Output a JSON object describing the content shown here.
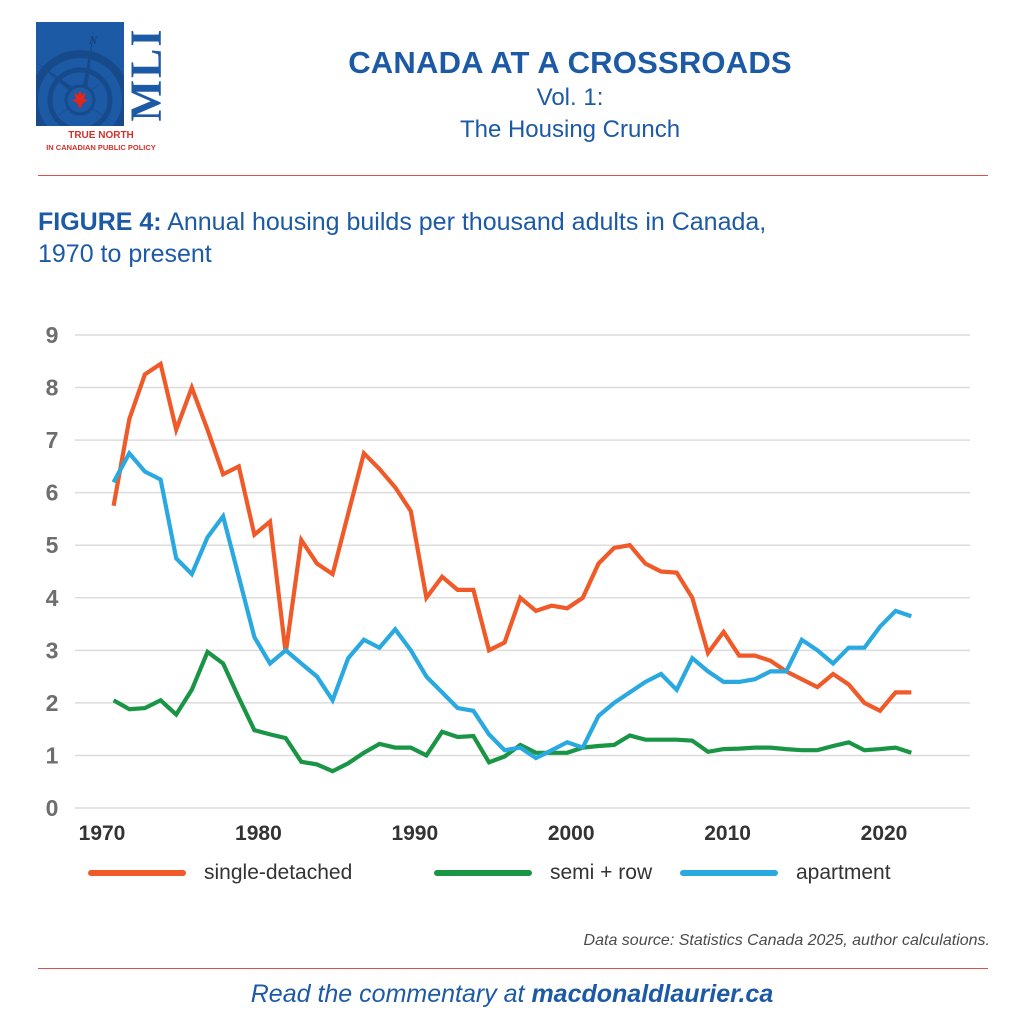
{
  "brand": {
    "logo_letters": "MLI",
    "logo_compass_letter": "N",
    "tagline_line1": "TRUE NORTH",
    "tagline_line2": "IN CANADIAN PUBLIC POLICY",
    "primary_color": "#1d5aa6",
    "accent_color": "#d0312d"
  },
  "header": {
    "title": "CANADA AT A CROSSROADS",
    "volume": "Vol. 1:",
    "subtitle": "The Housing Crunch"
  },
  "figure": {
    "label": "FIGURE 4:",
    "title_line1": " Annual housing builds per thousand adults in Canada,",
    "title_line2": "1970 to present"
  },
  "chart_data": {
    "type": "line",
    "title": "Annual housing builds per thousand adults in Canada, 1970 to present",
    "xlabel": "",
    "ylabel": "",
    "xlim": [
      1970,
      2023
    ],
    "ylim": [
      0,
      9
    ],
    "x_ticks": [
      1970,
      1980,
      1990,
      2000,
      2010,
      2020
    ],
    "x_tick_labels": [
      "1970",
      "1980",
      "1990",
      "2000",
      "2010",
      "2020"
    ],
    "y_ticks": [
      0,
      1,
      2,
      3,
      4,
      5,
      6,
      7,
      8,
      9
    ],
    "y_tick_labels": [
      "0",
      "1",
      "2",
      "3",
      "4",
      "5",
      "6",
      "7",
      "8",
      "9"
    ],
    "grid": "horizontal",
    "legend_position": "bottom",
    "x": [
      1971,
      1972,
      1973,
      1974,
      1975,
      1976,
      1977,
      1978,
      1979,
      1980,
      1981,
      1982,
      1983,
      1984,
      1985,
      1986,
      1987,
      1988,
      1989,
      1990,
      1991,
      1992,
      1993,
      1994,
      1995,
      1996,
      1997,
      1998,
      1999,
      2000,
      2001,
      2002,
      2003,
      2004,
      2005,
      2006,
      2007,
      2008,
      2009,
      2010,
      2011,
      2012,
      2013,
      2014,
      2015,
      2016,
      2017,
      2018,
      2019,
      2020,
      2021,
      2022
    ],
    "series": [
      {
        "name": "single-detached",
        "color": "#f05a28",
        "values": [
          5.75,
          7.4,
          8.25,
          8.45,
          7.2,
          8.0,
          7.2,
          6.35,
          6.5,
          5.2,
          5.45,
          2.95,
          5.1,
          4.65,
          4.45,
          5.6,
          6.75,
          6.45,
          6.1,
          5.65,
          4.0,
          4.4,
          4.15,
          4.15,
          3.0,
          3.15,
          4.0,
          3.75,
          3.85,
          3.8,
          4.0,
          4.65,
          4.95,
          5.0,
          4.65,
          4.5,
          4.48,
          4.0,
          2.95,
          3.35,
          2.9,
          2.9,
          2.8,
          2.6,
          2.45,
          2.3,
          2.55,
          2.35,
          2.0,
          1.85,
          2.2,
          2.2
        ]
      },
      {
        "name": "semi + row",
        "color": "#1a9545",
        "values": [
          2.05,
          1.88,
          1.9,
          2.05,
          1.78,
          2.25,
          2.97,
          2.75,
          2.1,
          1.48,
          1.4,
          1.33,
          0.88,
          0.83,
          0.7,
          0.85,
          1.05,
          1.22,
          1.15,
          1.15,
          1.0,
          1.45,
          1.35,
          1.37,
          0.87,
          0.98,
          1.2,
          1.05,
          1.05,
          1.05,
          1.15,
          1.18,
          1.2,
          1.38,
          1.3,
          1.3,
          1.3,
          1.28,
          1.07,
          1.12,
          1.13,
          1.15,
          1.15,
          1.12,
          1.1,
          1.1,
          1.18,
          1.25,
          1.1,
          1.12,
          1.15,
          1.05
        ]
      },
      {
        "name": "apartment",
        "color": "#29a9e0",
        "values": [
          6.2,
          6.75,
          6.4,
          6.25,
          4.75,
          4.45,
          5.15,
          5.55,
          4.4,
          3.25,
          2.75,
          3.0,
          2.75,
          2.5,
          2.05,
          2.85,
          3.2,
          3.05,
          3.4,
          3.0,
          2.5,
          2.2,
          1.9,
          1.85,
          1.4,
          1.1,
          1.15,
          0.95,
          1.1,
          1.25,
          1.15,
          1.75,
          2.0,
          2.2,
          2.4,
          2.55,
          2.25,
          2.85,
          2.6,
          2.4,
          2.4,
          2.45,
          2.6,
          2.6,
          3.2,
          3.0,
          2.75,
          3.05,
          3.05,
          3.45,
          3.75,
          3.65
        ]
      }
    ]
  },
  "source_note": "Data source: Statistics Canada 2025, author calculations.",
  "footer": {
    "prefix": "Read the commentary at ",
    "link": "macdonaldlaurier.ca"
  }
}
